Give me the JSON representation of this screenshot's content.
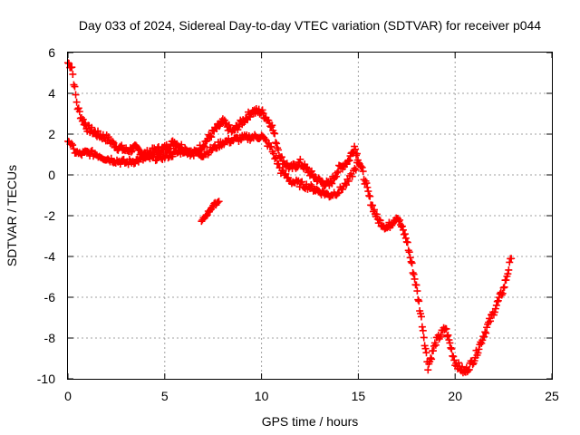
{
  "chart_data": {
    "type": "scatter",
    "title": "Day 033 of 2024, Sidereal Day-to-day VTEC variation (SDTVAR) for receiver p044",
    "xlabel": "GPS time / hours",
    "ylabel": "SDTVAR / TECUs",
    "xlim": [
      0,
      25
    ],
    "ylim": [
      -10,
      6
    ],
    "xticks": [
      "0",
      "5",
      "10",
      "15",
      "20",
      "25"
    ],
    "yticks": [
      "-10",
      "-8",
      "-6",
      "-4",
      "-2",
      "0",
      "2",
      "4",
      "6"
    ],
    "grid": true,
    "marker": "+",
    "marker_color": "#ff0000",
    "series": [
      {
        "name": "SDTVAR",
        "anchors": [
          [
            0.0,
            5.5
          ],
          [
            0.2,
            5.3
          ],
          [
            0.35,
            4.2
          ],
          [
            0.5,
            3.3
          ],
          [
            0.7,
            2.8
          ],
          [
            1.0,
            2.3
          ],
          [
            1.5,
            2.0
          ],
          [
            2.0,
            1.8
          ],
          [
            2.5,
            1.4
          ],
          [
            3.0,
            1.2
          ],
          [
            3.5,
            1.3
          ],
          [
            4.0,
            1.0
          ],
          [
            4.5,
            1.2
          ],
          [
            5.0,
            1.3
          ],
          [
            5.5,
            1.6
          ],
          [
            6.0,
            1.3
          ],
          [
            6.5,
            1.0
          ],
          [
            7.0,
            1.5
          ],
          [
            7.5,
            2.1
          ],
          [
            8.0,
            2.6
          ],
          [
            8.5,
            2.1
          ],
          [
            9.0,
            2.6
          ],
          [
            9.5,
            3.1
          ],
          [
            10.0,
            3.1
          ],
          [
            10.5,
            2.5
          ],
          [
            11.0,
            0.8
          ],
          [
            11.5,
            0.3
          ],
          [
            12.0,
            0.6
          ],
          [
            12.5,
            0.1
          ],
          [
            13.0,
            -0.3
          ],
          [
            13.5,
            -0.5
          ],
          [
            14.0,
            0.3
          ],
          [
            14.5,
            0.7
          ],
          [
            14.8,
            1.4
          ],
          [
            15.2,
            0.2
          ],
          [
            15.6,
            -1.2
          ],
          [
            16.0,
            -2.2
          ],
          [
            16.5,
            -2.6
          ],
          [
            17.0,
            -2.0
          ],
          [
            17.5,
            -3.2
          ],
          [
            18.0,
            -5.5
          ],
          [
            18.3,
            -7.3
          ],
          [
            18.6,
            -9.4
          ],
          [
            19.0,
            -8.2
          ],
          [
            19.5,
            -7.5
          ],
          [
            20.0,
            -9.2
          ],
          [
            20.5,
            -9.7
          ],
          [
            21.0,
            -9.0
          ],
          [
            21.5,
            -7.8
          ],
          [
            22.0,
            -6.7
          ],
          [
            22.5,
            -5.6
          ],
          [
            22.9,
            -4.1
          ]
        ],
        "anchors_b": [
          [
            0.0,
            1.8
          ],
          [
            0.3,
            1.2
          ],
          [
            0.6,
            1.0
          ],
          [
            1.0,
            1.1
          ],
          [
            1.5,
            1.0
          ],
          [
            2.0,
            0.8
          ],
          [
            3.0,
            0.6
          ],
          [
            4.0,
            0.8
          ],
          [
            5.0,
            0.9
          ],
          [
            6.0,
            1.2
          ],
          [
            7.0,
            1.0
          ],
          [
            8.0,
            1.6
          ],
          [
            9.0,
            1.8
          ],
          [
            10.0,
            1.9
          ],
          [
            10.5,
            1.3
          ],
          [
            11.0,
            0.2
          ],
          [
            11.5,
            -0.3
          ],
          [
            12.5,
            -0.6
          ],
          [
            13.5,
            -1.0
          ],
          [
            14.0,
            -0.8
          ],
          [
            14.5,
            -0.3
          ],
          [
            15.0,
            0.6
          ]
        ],
        "anchors_c": [
          [
            6.9,
            -2.3
          ],
          [
            7.2,
            -1.9
          ],
          [
            7.5,
            -1.5
          ],
          [
            7.8,
            -1.3
          ]
        ]
      }
    ]
  }
}
